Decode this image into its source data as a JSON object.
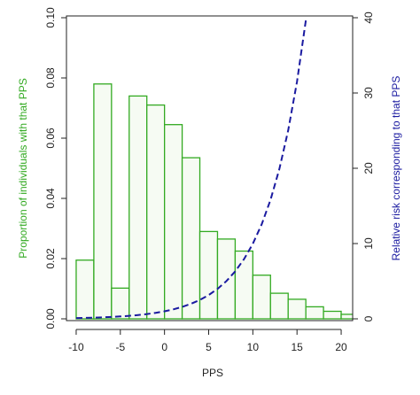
{
  "chart_data": {
    "type": "histogram",
    "xlabel": "PPS",
    "ylabel": "Proportion of individuals with that PPS",
    "y2label": "Relative risk corresponding to that PPS",
    "bins": [
      -10,
      -8,
      -6,
      -4,
      -2,
      0,
      2,
      4,
      6,
      8,
      10,
      12,
      14,
      16,
      18,
      20,
      22
    ],
    "values": [
      0.0195,
      0.078,
      0.0102,
      0.074,
      0.071,
      0.0645,
      0.0535,
      0.029,
      0.0265,
      0.0225,
      0.0145,
      0.0085,
      0.0065,
      0.004,
      0.0025,
      0.0015
    ],
    "color": "#33aa22",
    "fill": "#f6fbf3",
    "line": {
      "axis": "y2",
      "color": "#1a1aa0",
      "x": [
        -10,
        -9,
        -8,
        -7,
        -6,
        -5,
        -4,
        -3,
        -2,
        -1,
        0,
        1,
        2,
        3,
        4,
        5,
        6,
        7,
        8,
        9,
        10,
        11,
        12,
        13,
        14,
        15,
        16
      ],
      "values": [
        0.1,
        0.126,
        0.159,
        0.2,
        0.252,
        0.317,
        0.399,
        0.502,
        0.631,
        0.795,
        1,
        1.259,
        1.585,
        1.995,
        2.512,
        3.158,
        3.975,
        5.004,
        6.3,
        7.925,
        9.974,
        12.55,
        15.8,
        19.89,
        25.03,
        31.5,
        39.65
      ]
    },
    "xlim": [
      -11.1,
      21.3
    ],
    "xticks": [
      -10,
      -5,
      0,
      5,
      10,
      15,
      20
    ],
    "ylim": [
      0,
      0.1
    ],
    "yticks": [
      {
        "value": 0,
        "label": "0.00"
      },
      {
        "value": 0.02,
        "label": "0.02"
      },
      {
        "value": 0.04,
        "label": "0.04"
      },
      {
        "value": 0.06,
        "label": "0.06"
      },
      {
        "value": 0.08,
        "label": "0.08"
      },
      {
        "value": 0.1,
        "label": "0.10"
      }
    ],
    "y2lim": [
      0,
      40
    ],
    "y2ticks": [
      0,
      10,
      20,
      30,
      40
    ]
  }
}
